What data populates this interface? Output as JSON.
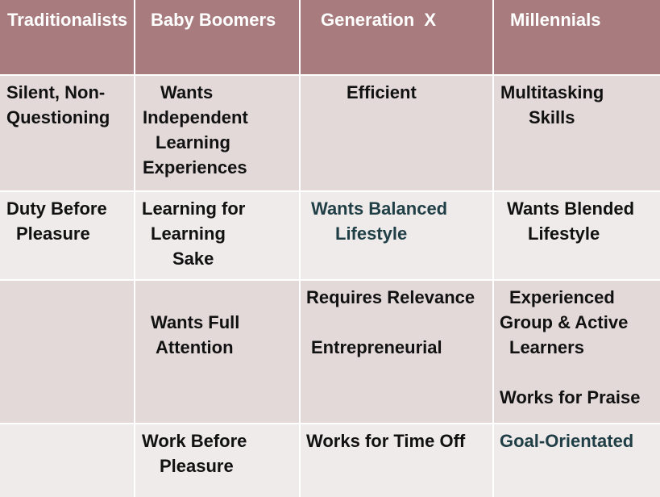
{
  "headers": [
    "Traditionalists",
    "Baby Boomers",
    "Generation  X",
    "Millennials"
  ],
  "rows": [
    {
      "cells": [
        [
          "Silent, Non-",
          "Questioning"
        ],
        [
          "Wants",
          "Independent",
          "Learning",
          "Experiences"
        ],
        [
          "Efficient"
        ],
        [
          "Multitasking",
          "Skills"
        ]
      ]
    },
    {
      "cells": [
        [
          "Duty Before",
          "Pleasure"
        ],
        [
          "Learning for",
          "Learning",
          "Sake"
        ],
        [
          "Wants Balanced",
          "Lifestyle"
        ],
        [
          "Wants Blended",
          "Lifestyle"
        ]
      ]
    },
    {
      "cells": [
        [],
        [
          "Wants Full",
          "Attention"
        ],
        [
          "Requires Relevance",
          "",
          "Entrepreneurial"
        ],
        [
          "Experienced",
          "Group & Active",
          "Learners",
          "",
          "Works for Praise"
        ]
      ]
    },
    {
      "cells": [
        [],
        [
          "Work Before",
          "Pleasure"
        ],
        [
          "Works for Time Off"
        ],
        [
          "Goal-Orientated"
        ]
      ]
    }
  ],
  "colors": {
    "header_bg": "#a87c7e",
    "row_dark_bg": "#e3d9d9",
    "row_light_bg": "#efebeb",
    "accent_text": "#1f3e45"
  }
}
